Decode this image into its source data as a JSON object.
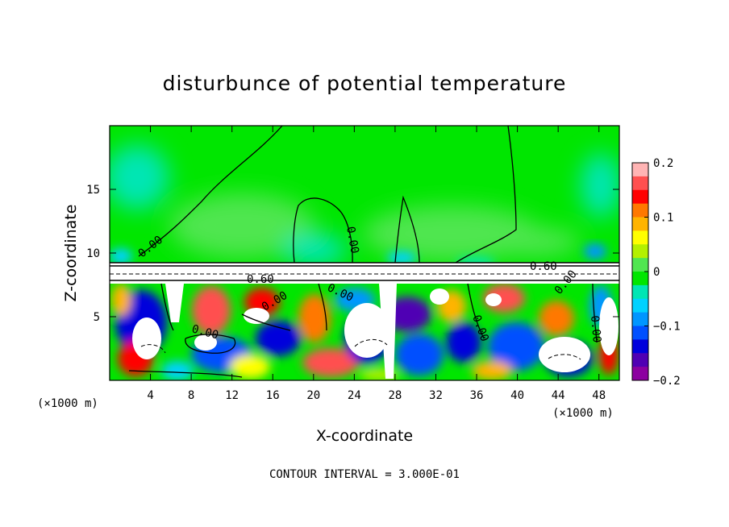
{
  "chart_data": {
    "type": "heatmap",
    "title": "disturbunce of potential temperature",
    "xlabel": "X-coordinate",
    "ylabel": "Z-coordinate",
    "x_unit": "(×1000 m)",
    "x_unit_right": "(×1000 m)",
    "xlim": [
      0,
      50
    ],
    "ylim": [
      0,
      20
    ],
    "x_ticks": [
      4,
      8,
      12,
      16,
      20,
      24,
      28,
      32,
      36,
      40,
      44,
      48
    ],
    "y_ticks": [
      5,
      10,
      15
    ],
    "colorbar": {
      "range": [
        -0.2,
        0.2
      ],
      "tick_values": [
        0.2,
        0.1,
        0,
        -0.1,
        -0.2
      ],
      "tick_labels": [
        "0.2",
        "0.1",
        "0",
        "−0.1",
        "−0.2"
      ],
      "colors": [
        "#ffb4b4",
        "#ff5050",
        "#ff0000",
        "#ff7800",
        "#ffb400",
        "#ffff00",
        "#b4f000",
        "#50e650",
        "#00e600",
        "#00e6b4",
        "#00d2ff",
        "#0096ff",
        "#0050ff",
        "#0000dc",
        "#5000b4",
        "#8c00a0"
      ]
    },
    "contour_labels": [
      "0.00",
      "0.00",
      "0.60",
      "0.60",
      "0.00",
      "0.00",
      "0.00",
      "0.00",
      "0.00",
      "0.00"
    ],
    "footer": "CONTOUR INTERVAL = 3.000E-01",
    "grid": false,
    "legend": "right"
  }
}
